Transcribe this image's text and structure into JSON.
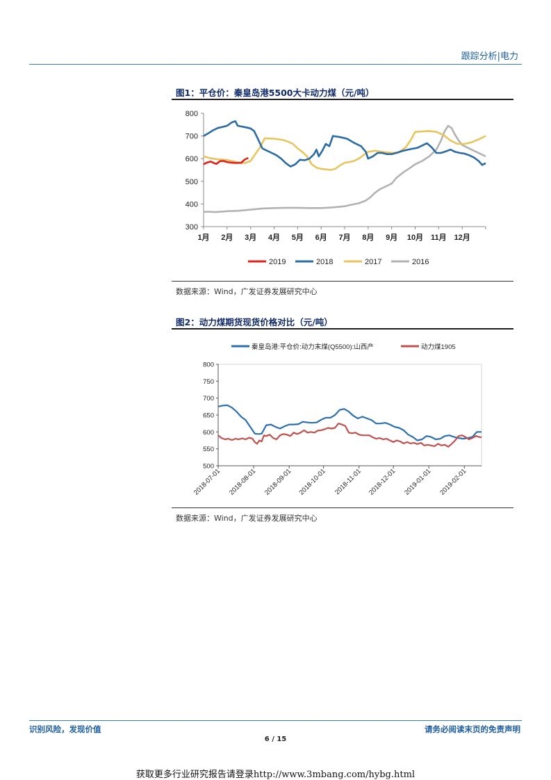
{
  "header": {
    "section": "跟踪分析|电力"
  },
  "figure1": {
    "title": "图1：平仓价：秦皇岛港5500大卡动力煤（元/吨）",
    "source": "数据来源：Wind，广发证券发展研究中心"
  },
  "figure2": {
    "title": "图2：动力煤期货现货价格对比（元/吨）",
    "source": "数据来源：Wind，广发证券发展研究中心"
  },
  "chart_data": [
    {
      "type": "line",
      "title": "平仓价：秦皇岛港5500大卡动力煤（元/吨）",
      "x_tick_labels": [
        "1月",
        "2月",
        "3月",
        "4月",
        "5月",
        "6月",
        "7月",
        "8月",
        "9月",
        "10月",
        "11月",
        "12月"
      ],
      "xlim": [
        1,
        13
      ],
      "ylim": [
        300,
        800
      ],
      "y_ticks": [
        300,
        400,
        500,
        600,
        700,
        800
      ],
      "legend_position": "bottom",
      "series": [
        {
          "name": "2019",
          "color": "#e0201b",
          "x": [
            1,
            1.15,
            1.3,
            1.45,
            1.55,
            1.7,
            1.85,
            2,
            2.2,
            2.4,
            2.6,
            2.75,
            2.9
          ],
          "values": [
            575,
            583,
            587,
            580,
            577,
            589,
            590,
            585,
            582,
            581,
            582,
            596,
            603
          ]
        },
        {
          "name": "2018",
          "color": "#2b6aa3",
          "x": [
            1,
            1.2,
            1.4,
            1.6,
            1.8,
            2,
            2.2,
            2.35,
            2.45,
            2.6,
            2.8,
            3,
            3.15,
            3.3,
            3.5,
            3.7,
            3.9,
            4.1,
            4.3,
            4.5,
            4.7,
            4.9,
            5.1,
            5.3,
            5.5,
            5.7,
            5.8,
            5.9,
            6.05,
            6.2,
            6.35,
            6.5,
            6.8,
            7.1,
            7.4,
            7.7,
            7.9,
            8,
            8.2,
            8.4,
            8.6,
            8.8,
            9,
            9.2,
            9.5,
            9.8,
            10.1,
            10.3,
            10.5,
            10.7,
            10.9,
            11.1,
            11.3,
            11.5,
            11.7,
            11.9,
            12.1,
            12.3,
            12.5,
            12.7,
            12.85,
            13
          ],
          "values": [
            700,
            712,
            725,
            735,
            740,
            745,
            760,
            765,
            745,
            742,
            738,
            733,
            722,
            690,
            645,
            635,
            625,
            615,
            600,
            580,
            565,
            575,
            595,
            593,
            600,
            620,
            640,
            610,
            635,
            665,
            655,
            700,
            695,
            688,
            670,
            655,
            630,
            600,
            610,
            625,
            625,
            620,
            620,
            625,
            635,
            642,
            648,
            658,
            668,
            650,
            625,
            625,
            632,
            640,
            630,
            625,
            622,
            615,
            605,
            590,
            572,
            580
          ]
        },
        {
          "name": "2017",
          "color": "#e8c45e",
          "x": [
            1,
            1.2,
            1.4,
            1.6,
            1.8,
            2,
            2.2,
            2.4,
            2.6,
            2.8,
            3,
            3.2,
            3.4,
            3.6,
            3.8,
            4,
            4.2,
            4.4,
            4.6,
            4.8,
            5,
            5.2,
            5.4,
            5.6,
            5.8,
            6,
            6.2,
            6.4,
            6.6,
            6.8,
            7,
            7.2,
            7.4,
            7.6,
            7.8,
            8,
            8.3,
            8.6,
            9,
            9.3,
            9.6,
            9.8,
            10,
            10.3,
            10.6,
            10.9,
            11.2,
            11.5,
            11.8,
            12.1,
            12.4,
            12.7,
            13
          ],
          "values": [
            610,
            604,
            600,
            597,
            596,
            594,
            590,
            585,
            580,
            582,
            590,
            620,
            650,
            690,
            689,
            688,
            685,
            682,
            675,
            665,
            645,
            630,
            610,
            575,
            560,
            555,
            553,
            550,
            555,
            570,
            582,
            585,
            590,
            600,
            615,
            630,
            635,
            630,
            625,
            628,
            650,
            680,
            718,
            720,
            722,
            718,
            705,
            680,
            665,
            665,
            672,
            685,
            700
          ]
        },
        {
          "name": "2016",
          "color": "#b2b2b2",
          "x": [
            1,
            1.2,
            1.5,
            2,
            2.5,
            3,
            3.5,
            4,
            4.5,
            5,
            5.5,
            6,
            6.5,
            7,
            7.3,
            7.6,
            7.9,
            8.1,
            8.3,
            8.5,
            8.7,
            9,
            9.2,
            9.5,
            9.8,
            10,
            10.3,
            10.6,
            10.9,
            11.1,
            11.25,
            11.4,
            11.55,
            11.7,
            11.85,
            12,
            12.2,
            12.4,
            12.6,
            12.8,
            13
          ],
          "values": [
            365,
            366,
            364,
            368,
            370,
            375,
            380,
            382,
            383,
            383,
            382,
            382,
            385,
            390,
            397,
            403,
            415,
            430,
            450,
            465,
            475,
            490,
            515,
            540,
            560,
            575,
            590,
            610,
            640,
            680,
            720,
            745,
            735,
            705,
            680,
            660,
            650,
            640,
            630,
            620,
            610
          ]
        }
      ]
    },
    {
      "type": "line",
      "title": "动力煤期货现货价格对比（元/吨）",
      "x_tick_labels": [
        "2018-07-01",
        "2018-08-01",
        "2018-09-01",
        "2018-10-01",
        "2018-11-01",
        "2018-12-01",
        "2019-01-01",
        "2019-02-01"
      ],
      "x_unit": "days since 2018-07-01",
      "xlim": [
        0,
        230
      ],
      "ylim": [
        500,
        800
      ],
      "y_ticks": [
        500,
        550,
        600,
        650,
        700,
        750,
        800
      ],
      "legend_position": "top",
      "series": [
        {
          "name": "秦皇岛港:平仓价:动力末煤(Q5500):山西产",
          "color": "#2d6fad",
          "x": [
            0,
            4,
            8,
            12,
            16,
            20,
            24,
            28,
            32,
            35,
            38,
            42,
            46,
            50,
            54,
            58,
            62,
            66,
            70,
            74,
            78,
            82,
            86,
            90,
            94,
            98,
            102,
            106,
            110,
            114,
            118,
            122,
            126,
            130,
            134,
            138,
            142,
            146,
            150,
            154,
            158,
            162,
            166,
            170,
            174,
            178,
            182,
            186,
            190,
            194,
            198,
            202,
            206,
            210,
            214,
            218,
            222,
            226,
            230
          ],
          "values": [
            675,
            678,
            679,
            672,
            660,
            645,
            635,
            615,
            595,
            594,
            595,
            620,
            622,
            615,
            610,
            617,
            622,
            622,
            623,
            630,
            628,
            627,
            628,
            636,
            642,
            642,
            650,
            665,
            668,
            660,
            648,
            640,
            645,
            640,
            635,
            625,
            625,
            627,
            622,
            615,
            612,
            605,
            592,
            585,
            575,
            578,
            588,
            585,
            578,
            580,
            588,
            590,
            585,
            582,
            580,
            582,
            585,
            600,
            600
          ]
        },
        {
          "name": "动力煤1905",
          "color": "#c0504d",
          "x": [
            0,
            3,
            6,
            9,
            12,
            15,
            18,
            21,
            24,
            27,
            30,
            32,
            34,
            36,
            38,
            40,
            42,
            45,
            48,
            51,
            54,
            57,
            60,
            63,
            66,
            69,
            72,
            75,
            78,
            81,
            84,
            87,
            90,
            93,
            96,
            99,
            102,
            105,
            108,
            111,
            114,
            117,
            120,
            123,
            126,
            129,
            132,
            135,
            138,
            141,
            144,
            147,
            150,
            153,
            156,
            159,
            162,
            165,
            168,
            171,
            174,
            177,
            180,
            183,
            186,
            189,
            192,
            195,
            198,
            201,
            204,
            207,
            210,
            213,
            216,
            219,
            222,
            225,
            228,
            230
          ],
          "values": [
            590,
            582,
            578,
            580,
            576,
            580,
            578,
            581,
            578,
            583,
            580,
            570,
            565,
            575,
            572,
            590,
            588,
            592,
            582,
            578,
            590,
            594,
            592,
            588,
            598,
            594,
            598,
            605,
            598,
            600,
            598,
            604,
            605,
            608,
            612,
            610,
            612,
            625,
            622,
            618,
            598,
            596,
            598,
            592,
            590,
            590,
            590,
            584,
            580,
            582,
            578,
            580,
            575,
            570,
            575,
            572,
            566,
            570,
            566,
            568,
            564,
            568,
            560,
            562,
            560,
            558,
            565,
            560,
            562,
            556,
            565,
            575,
            588,
            590,
            585,
            578,
            582,
            588,
            585,
            584
          ]
        }
      ]
    }
  ],
  "footer": {
    "left": "识别风险，发现价值",
    "right": "请务必阅读末页的免责声明",
    "page": "6 / 15"
  },
  "advert": "获取更多行业研究报告请登录http://www.3mbang.com/hybg.html"
}
